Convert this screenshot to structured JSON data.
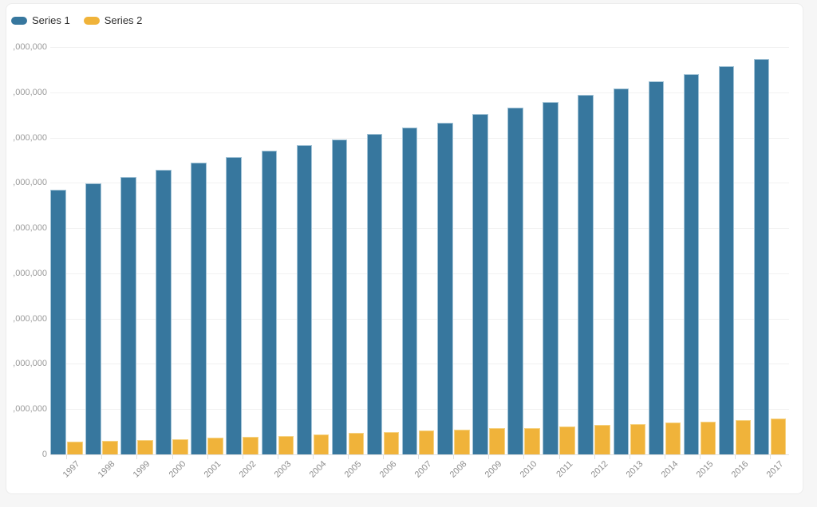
{
  "chart_data": {
    "type": "bar",
    "title": "",
    "xlabel": "",
    "ylabel": "",
    "categories": [
      "1997",
      "1998",
      "1999",
      "2000",
      "2001",
      "2002",
      "2003",
      "2004",
      "2005",
      "2006",
      "2007",
      "2008",
      "2009",
      "2010",
      "2011",
      "2012",
      "2013",
      "2014",
      "2015",
      "2016",
      "2017"
    ],
    "series": [
      {
        "name": "Series 1",
        "color": "#37779e",
        "border_color": "#a3c4d7",
        "values": [
          5850000,
          5980000,
          6130000,
          6290000,
          6440000,
          6570000,
          6710000,
          6830000,
          6950000,
          7080000,
          7220000,
          7320000,
          7520000,
          7660000,
          7780000,
          7940000,
          8080000,
          8240000,
          8400000,
          8570000,
          8730000
        ]
      },
      {
        "name": "Series 2",
        "color": "#f0b33a",
        "border_color": "#f6d384",
        "values": [
          280000,
          300000,
          320000,
          340000,
          370000,
          390000,
          410000,
          440000,
          475000,
          490000,
          530000,
          550000,
          575000,
          590000,
          620000,
          650000,
          670000,
          700000,
          720000,
          760000,
          790000
        ]
      }
    ],
    "ylim": [
      0,
      9000000
    ],
    "y_tick_interval": 1000000,
    "y_tick_labels_display": [
      "0",
      ",000,000",
      ",000,000",
      ",000,000",
      ",000,000",
      ",000,000",
      ",000,000",
      ",000,000",
      ",000,000",
      ",000,000"
    ],
    "grid": "horizontal",
    "legend_position": "top-left",
    "x_tick_rotation": -45
  }
}
